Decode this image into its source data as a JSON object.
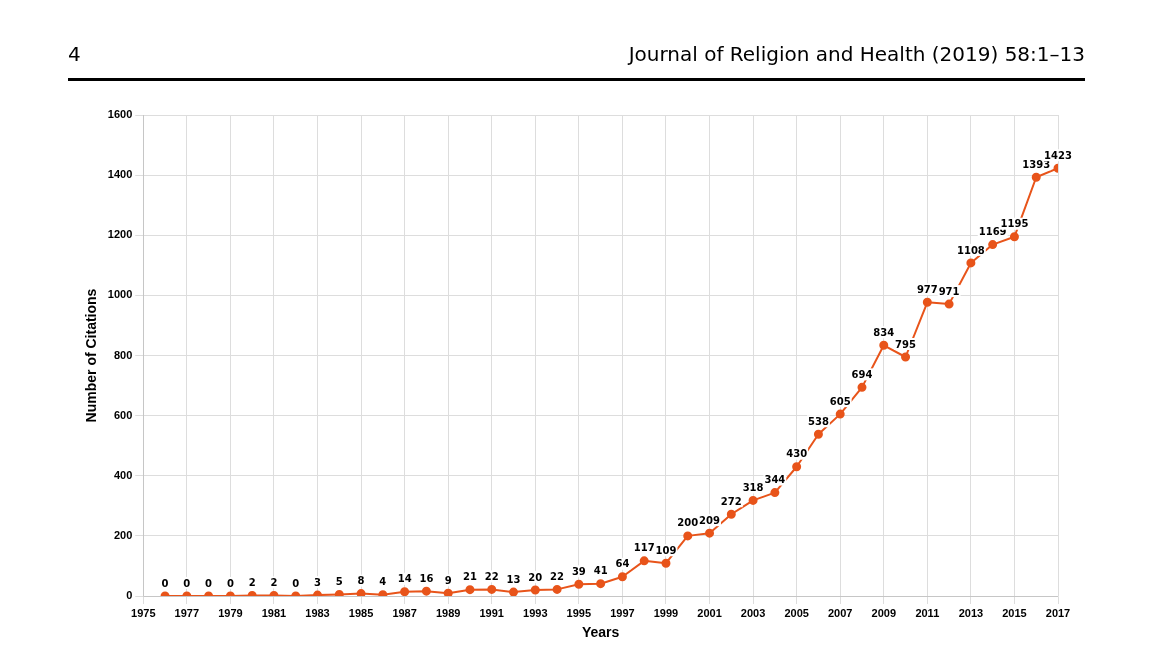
{
  "chart_data": {
    "type": "line",
    "xlabel": "Years",
    "ylabel": "Number of Citations",
    "annotations": [
      "4",
      "Journal of Religion and Health (2019) 58:1–13"
    ],
    "x": [
      1976,
      1977,
      1978,
      1979,
      1980,
      1981,
      1982,
      1983,
      1984,
      1985,
      1986,
      1987,
      1988,
      1989,
      1990,
      1991,
      1992,
      1993,
      1994,
      1995,
      1996,
      1997,
      1998,
      1999,
      2000,
      2001,
      2002,
      2003,
      2004,
      2005,
      2006,
      2007,
      2008,
      2009,
      2010,
      2011,
      2012,
      2013,
      2014,
      2015,
      2016,
      2017
    ],
    "series": [
      {
        "color": "#e8541a",
        "values": [
          0,
          0,
          0,
          0,
          2,
          2,
          0,
          3,
          5,
          8,
          4,
          14,
          16,
          9,
          21,
          22,
          13,
          20,
          22,
          39,
          41,
          64,
          117,
          109,
          200,
          209,
          272,
          318,
          344,
          430,
          538,
          605,
          694,
          834,
          795,
          977,
          971,
          1108,
          1169,
          1195,
          1393,
          1423
        ]
      }
    ],
    "xlim": [
      1975,
      2017
    ],
    "xticks": [
      1975,
      1977,
      1979,
      1981,
      1983,
      1985,
      1987,
      1989,
      1991,
      1993,
      1995,
      1997,
      1999,
      2001,
      2003,
      2005,
      2007,
      2009,
      2011,
      2013,
      2015,
      2017
    ],
    "ylim": [
      0,
      1600
    ],
    "yticks": [
      0,
      200,
      400,
      600,
      800,
      1000,
      1200,
      1400,
      1600
    ],
    "grid": true,
    "legend": false,
    "marker": "circle",
    "line_style": "solid",
    "data_labels": true
  }
}
